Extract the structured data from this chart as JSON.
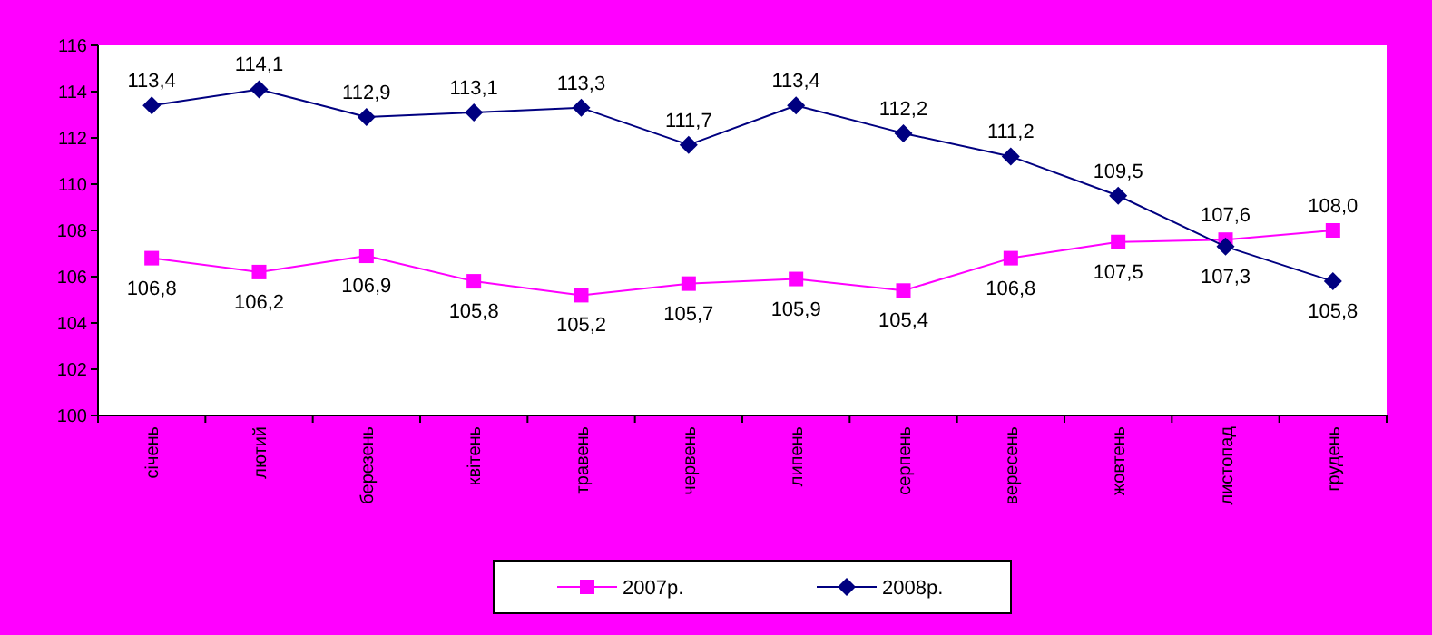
{
  "chart_data": {
    "type": "line",
    "categories": [
      "січень",
      "лютий",
      "березень",
      "квітень",
      "травень",
      "червень",
      "липень",
      "серпень",
      "вересень",
      "жовтень",
      "листопад",
      "грудень"
    ],
    "series": [
      {
        "name": "2007р.",
        "color": "#ff00ff",
        "marker": "square",
        "values": [
          106.8,
          106.2,
          106.9,
          105.8,
          105.2,
          105.7,
          105.9,
          105.4,
          106.8,
          107.5,
          107.6,
          108.0
        ],
        "value_labels": [
          "106,8",
          "106,2",
          "106,9",
          "105,8",
          "105,2",
          "105,7",
          "105,9",
          "105,4",
          "106,8",
          "107,5",
          "107,6",
          "108,0"
        ]
      },
      {
        "name": "2008р.",
        "color": "#000080",
        "marker": "diamond",
        "values": [
          113.4,
          114.1,
          112.9,
          113.1,
          113.3,
          111.7,
          113.4,
          112.2,
          111.2,
          109.5,
          107.3,
          105.8
        ],
        "value_labels": [
          "113,4",
          "114,1",
          "112,9",
          "113,1",
          "113,3",
          "111,7",
          "113,4",
          "112,2",
          "111,2",
          "109,5",
          "107,3",
          "105,8"
        ]
      }
    ],
    "ylim": [
      100,
      116
    ],
    "yticks": [
      100,
      102,
      104,
      106,
      108,
      110,
      112,
      114,
      116
    ],
    "grid": false,
    "legend": "bottom"
  }
}
